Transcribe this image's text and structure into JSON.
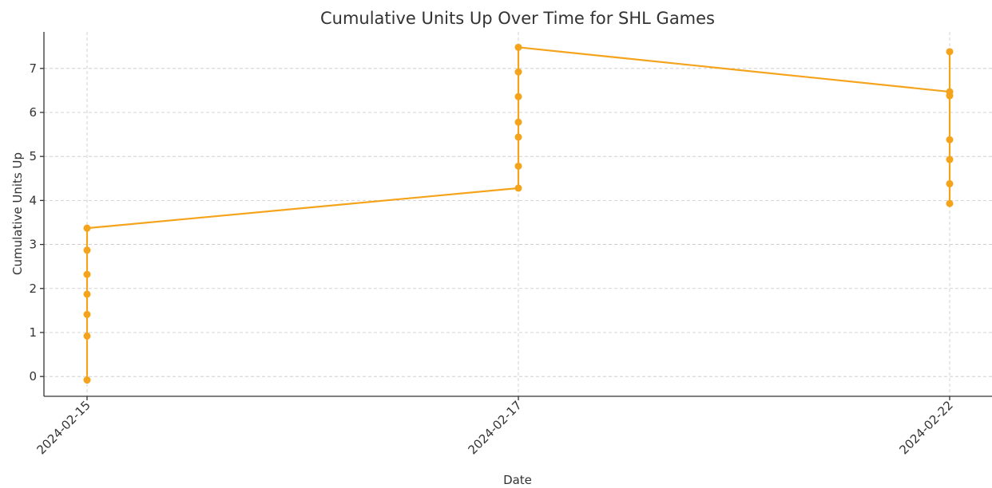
{
  "chart_data": {
    "type": "line",
    "title": "Cumulative Units Up Over Time for SHL Games",
    "xlabel": "Date",
    "ylabel": "Cumulative Units Up",
    "xticks": [
      "2024-02-15",
      "2024-02-17",
      "2024-02-22"
    ],
    "x": [
      "2024-02-15",
      "2024-02-15",
      "2024-02-15",
      "2024-02-15",
      "2024-02-15",
      "2024-02-15",
      "2024-02-15",
      "2024-02-17",
      "2024-02-17",
      "2024-02-17",
      "2024-02-17",
      "2024-02-17",
      "2024-02-17",
      "2024-02-17",
      "2024-02-22",
      "2024-02-22",
      "2024-02-22",
      "2024-02-22",
      "2024-02-22",
      "2024-02-22",
      "2024-02-22"
    ],
    "series": [
      {
        "color": "#f5a31b",
        "values": [
          -0.08,
          0.92,
          1.41,
          1.87,
          2.32,
          2.87,
          3.37,
          4.28,
          4.78,
          5.44,
          5.78,
          6.36,
          6.92,
          7.48,
          6.47,
          6.38,
          7.38,
          5.38,
          4.93,
          4.38,
          3.93
        ]
      }
    ],
    "ylim": [
      -0.45,
      7.83
    ],
    "yticks": [
      0,
      1,
      2,
      3,
      4,
      5,
      6,
      7
    ],
    "grid": true
  }
}
